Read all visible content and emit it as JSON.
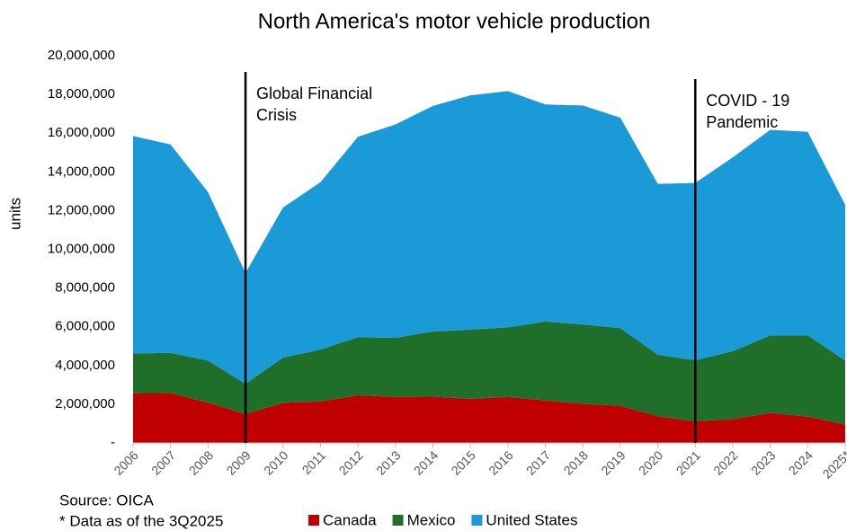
{
  "chart_data": {
    "type": "stacked_area",
    "title": "North America's motor vehicle production",
    "y_label": "units",
    "notes": [
      "Source: OICA",
      "* Data as of the 3Q2025"
    ],
    "categories": [
      "2006",
      "2007",
      "2008",
      "2009",
      "2010",
      "2011",
      "2012",
      "2013",
      "2014",
      "2015",
      "2016",
      "2017",
      "2018",
      "2019",
      "2020",
      "2021",
      "2022",
      "2023",
      "2024",
      "2025*"
    ],
    "series": [
      {
        "name": "Canada",
        "color": "#c00000",
        "values": [
          2570000,
          2580000,
          2080000,
          1490000,
          2070000,
          2140000,
          2460000,
          2380000,
          2390000,
          2280000,
          2370000,
          2200000,
          2020000,
          1920000,
          1380000,
          1120000,
          1230000,
          1550000,
          1360000,
          950000
        ]
      },
      {
        "name": "Mexico",
        "color": "#1f6e2a",
        "values": [
          2050000,
          2070000,
          2170000,
          1560000,
          2340000,
          2680000,
          3000000,
          3050000,
          3370000,
          3570000,
          3600000,
          4070000,
          4100000,
          4010000,
          3180000,
          3150000,
          3510000,
          4000000,
          4200000,
          3300000
        ]
      },
      {
        "name": "United States",
        "color": "#1a9bd7",
        "values": [
          11230000,
          10770000,
          8700000,
          5730000,
          7750000,
          8650000,
          10350000,
          11020000,
          11650000,
          12100000,
          12200000,
          11210000,
          11310000,
          10870000,
          8820000,
          9160000,
          10010000,
          10620000,
          10510000,
          8050000
        ]
      }
    ],
    "annotations": [
      {
        "x": "2009",
        "text": [
          "Global Financial",
          "Crisis"
        ]
      },
      {
        "x": "2021",
        "text": [
          "COVID - 19",
          "Pandemic"
        ]
      }
    ],
    "ylim": [
      0,
      20000000
    ],
    "yticks": [
      {
        "value": 0,
        "label": "-"
      },
      {
        "value": 2000000,
        "label": "2,000,000"
      },
      {
        "value": 4000000,
        "label": "4,000,000"
      },
      {
        "value": 6000000,
        "label": "6,000,000"
      },
      {
        "value": 8000000,
        "label": "8,000,000"
      },
      {
        "value": 10000000,
        "label": "10,000,000"
      },
      {
        "value": 12000000,
        "label": "12,000,000"
      },
      {
        "value": 14000000,
        "label": "14,000,000"
      },
      {
        "value": 16000000,
        "label": "16,000,000"
      },
      {
        "value": 18000000,
        "label": "18,000,000"
      },
      {
        "value": 20000000,
        "label": "20,000,000"
      }
    ],
    "legend": "bottom"
  }
}
